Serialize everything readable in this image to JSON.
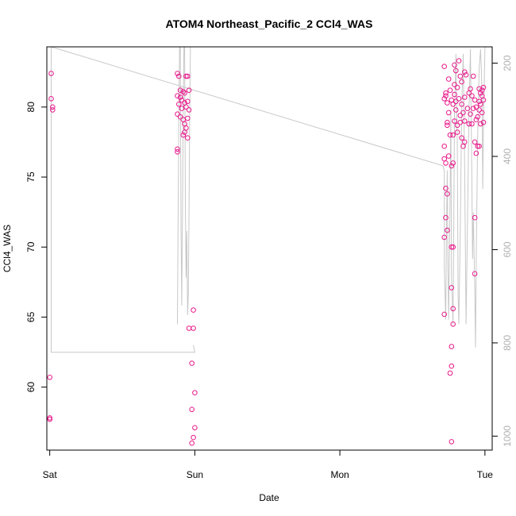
{
  "chart_data": {
    "type": "scatter",
    "title": "ATOM4 Northeast_Pacific_2 CCl4_WAS",
    "xlabel": "Date",
    "ylabel": "CCl4_WAS",
    "x_ticks": [
      "Sat",
      "Sun",
      "Mon",
      "Tue"
    ],
    "x_range_days": [
      -0.02,
      3.05
    ],
    "ylim": [
      55.5,
      84.3
    ],
    "y_ticks": [
      60,
      65,
      70,
      75,
      80
    ],
    "right_axis_ylim": [
      1030,
      165
    ],
    "right_axis_ticks": [
      200,
      400,
      600,
      800,
      1000
    ],
    "point_color": "#e8198b",
    "line_color": "#c8c8c8",
    "right_axis_color": "#b0b0b0",
    "series": [
      {
        "points": [
          [
            0.01,
            82.4
          ],
          [
            0.01,
            80.6
          ],
          [
            0.02,
            80.0
          ],
          [
            0.02,
            79.8
          ],
          [
            0.0,
            60.7
          ],
          [
            0.0,
            57.8
          ],
          [
            0.0,
            57.7
          ],
          [
            0.88,
            82.4
          ],
          [
            0.89,
            82.2
          ],
          [
            0.94,
            82.2
          ],
          [
            0.95,
            82.2
          ],
          [
            0.9,
            81.2
          ],
          [
            0.92,
            81.1
          ],
          [
            0.93,
            81.0
          ],
          [
            0.96,
            81.2
          ],
          [
            0.88,
            80.8
          ],
          [
            0.9,
            80.7
          ],
          [
            0.91,
            80.5
          ],
          [
            0.93,
            80.3
          ],
          [
            0.95,
            80.4
          ],
          [
            0.89,
            80.2
          ],
          [
            0.91,
            79.9
          ],
          [
            0.94,
            80.0
          ],
          [
            0.96,
            79.8
          ],
          [
            0.88,
            79.5
          ],
          [
            0.9,
            79.3
          ],
          [
            0.92,
            79.1
          ],
          [
            0.95,
            79.2
          ],
          [
            0.93,
            78.8
          ],
          [
            0.94,
            78.5
          ],
          [
            0.93,
            78.2
          ],
          [
            0.92,
            78.0
          ],
          [
            0.95,
            77.8
          ],
          [
            0.88,
            77.0
          ],
          [
            0.88,
            76.8
          ],
          [
            0.99,
            65.5
          ],
          [
            0.96,
            64.2
          ],
          [
            0.99,
            64.2
          ],
          [
            0.98,
            61.7
          ],
          [
            1.0,
            59.6
          ],
          [
            0.98,
            58.4
          ],
          [
            1.0,
            57.1
          ],
          [
            0.99,
            56.4
          ],
          [
            0.98,
            56.0
          ],
          [
            2.72,
            82.9
          ],
          [
            2.73,
            81.0
          ],
          [
            2.73,
            80.8
          ],
          [
            2.72,
            80.6
          ],
          [
            2.74,
            80.3
          ],
          [
            2.75,
            82.0
          ],
          [
            2.76,
            81.2
          ],
          [
            2.77,
            80.5
          ],
          [
            2.75,
            79.6
          ],
          [
            2.74,
            78.9
          ],
          [
            2.74,
            78.7
          ],
          [
            2.76,
            78.0
          ],
          [
            2.75,
            76.5
          ],
          [
            2.73,
            76.0
          ],
          [
            2.72,
            77.2
          ],
          [
            2.72,
            76.3
          ],
          [
            2.77,
            75.8
          ],
          [
            2.78,
            76.0
          ],
          [
            2.73,
            74.2
          ],
          [
            2.74,
            73.8
          ],
          [
            2.73,
            72.1
          ],
          [
            2.74,
            71.2
          ],
          [
            2.72,
            70.7
          ],
          [
            2.77,
            70.0
          ],
          [
            2.78,
            70.0
          ],
          [
            2.77,
            67.1
          ],
          [
            2.78,
            65.6
          ],
          [
            2.78,
            64.5
          ],
          [
            2.72,
            65.2
          ],
          [
            2.77,
            62.9
          ],
          [
            2.77,
            61.5
          ],
          [
            2.76,
            61.0
          ],
          [
            2.77,
            56.1
          ],
          [
            2.79,
            83.0
          ],
          [
            2.8,
            82.6
          ],
          [
            2.82,
            83.3
          ],
          [
            2.83,
            82.2
          ],
          [
            2.86,
            82.5
          ],
          [
            2.79,
            81.6
          ],
          [
            2.81,
            81.4
          ],
          [
            2.84,
            81.8
          ],
          [
            2.87,
            82.3
          ],
          [
            2.89,
            81.0
          ],
          [
            2.79,
            80.9
          ],
          [
            2.8,
            80.4
          ],
          [
            2.82,
            80.6
          ],
          [
            2.84,
            80.2
          ],
          [
            2.86,
            80.7
          ],
          [
            2.78,
            80.2
          ],
          [
            2.8,
            79.8
          ],
          [
            2.83,
            79.4
          ],
          [
            2.85,
            79.6
          ],
          [
            2.88,
            79.9
          ],
          [
            2.79,
            79.0
          ],
          [
            2.81,
            78.7
          ],
          [
            2.83,
            78.9
          ],
          [
            2.86,
            79.0
          ],
          [
            2.89,
            78.8
          ],
          [
            2.78,
            78.0
          ],
          [
            2.81,
            78.2
          ],
          [
            2.84,
            77.8
          ],
          [
            2.86,
            77.5
          ],
          [
            2.85,
            77.2
          ],
          [
            2.9,
            81.3
          ],
          [
            2.91,
            80.8
          ],
          [
            2.92,
            82.2
          ],
          [
            2.93,
            80.5
          ],
          [
            2.94,
            80.0
          ],
          [
            2.9,
            79.5
          ],
          [
            2.92,
            79.9
          ],
          [
            2.94,
            79.1
          ],
          [
            2.95,
            79.3
          ],
          [
            2.91,
            78.8
          ],
          [
            2.96,
            81.3
          ],
          [
            2.97,
            81.0
          ],
          [
            2.98,
            80.8
          ],
          [
            2.99,
            80.5
          ],
          [
            2.96,
            80.4
          ],
          [
            2.97,
            80.2
          ],
          [
            2.98,
            81.2
          ],
          [
            2.99,
            81.4
          ],
          [
            2.96,
            79.8
          ],
          [
            2.98,
            79.6
          ],
          [
            2.97,
            78.8
          ],
          [
            2.99,
            78.9
          ],
          [
            2.95,
            77.2
          ],
          [
            2.96,
            77.2
          ],
          [
            2.94,
            76.7
          ],
          [
            2.93,
            77.5
          ],
          [
            2.93,
            72.1
          ],
          [
            2.93,
            68.1
          ]
        ]
      }
    ],
    "secondary_line": [
      [
        0.01,
        165
      ],
      [
        2.71,
        420
      ],
      [
        2.72,
        430
      ],
      [
        2.72,
        640
      ],
      [
        2.73,
        750
      ],
      [
        2.735,
        560
      ],
      [
        2.74,
        430
      ],
      [
        2.745,
        640
      ],
      [
        2.75,
        750
      ],
      [
        2.76,
        480
      ],
      [
        2.765,
        300
      ],
      [
        2.77,
        660
      ],
      [
        2.78,
        760
      ],
      [
        2.785,
        550
      ],
      [
        2.79,
        310
      ],
      [
        2.8,
        180
      ],
      [
        2.81,
        380
      ],
      [
        2.815,
        700
      ],
      [
        2.82,
        760
      ],
      [
        2.83,
        560
      ],
      [
        2.84,
        300
      ],
      [
        2.85,
        180
      ],
      [
        2.86,
        420
      ],
      [
        2.87,
        760
      ],
      [
        2.88,
        540
      ],
      [
        2.89,
        300
      ],
      [
        2.9,
        170
      ],
      [
        2.91,
        450
      ],
      [
        2.915,
        620
      ],
      [
        2.92,
        520
      ],
      [
        2.93,
        690
      ],
      [
        2.935,
        810
      ],
      [
        2.94,
        620
      ],
      [
        2.95,
        360
      ],
      [
        2.96,
        210
      ],
      [
        2.97,
        170
      ],
      [
        2.98,
        260
      ],
      [
        2.985,
        470
      ],
      [
        2.99,
        330
      ],
      [
        3.0,
        165
      ],
      null,
      [
        0.01,
        165
      ],
      [
        0.01,
        820
      ],
      [
        1.0,
        820
      ],
      [
        0.99,
        805
      ],
      null,
      [
        0.88,
        760
      ],
      [
        0.885,
        520
      ],
      [
        0.89,
        310
      ],
      [
        0.895,
        165
      ],
      null,
      [
        0.9,
        165
      ],
      [
        0.905,
        540
      ],
      [
        0.91,
        720
      ],
      [
        0.915,
        520
      ],
      [
        0.92,
        300
      ],
      [
        0.925,
        165
      ],
      null,
      [
        0.93,
        165
      ],
      [
        0.935,
        500
      ],
      [
        0.94,
        660
      ],
      [
        0.945,
        560
      ],
      [
        0.95,
        740
      ],
      [
        0.955,
        700
      ],
      [
        0.96,
        520
      ],
      [
        0.965,
        300
      ],
      [
        0.97,
        165
      ]
    ]
  }
}
